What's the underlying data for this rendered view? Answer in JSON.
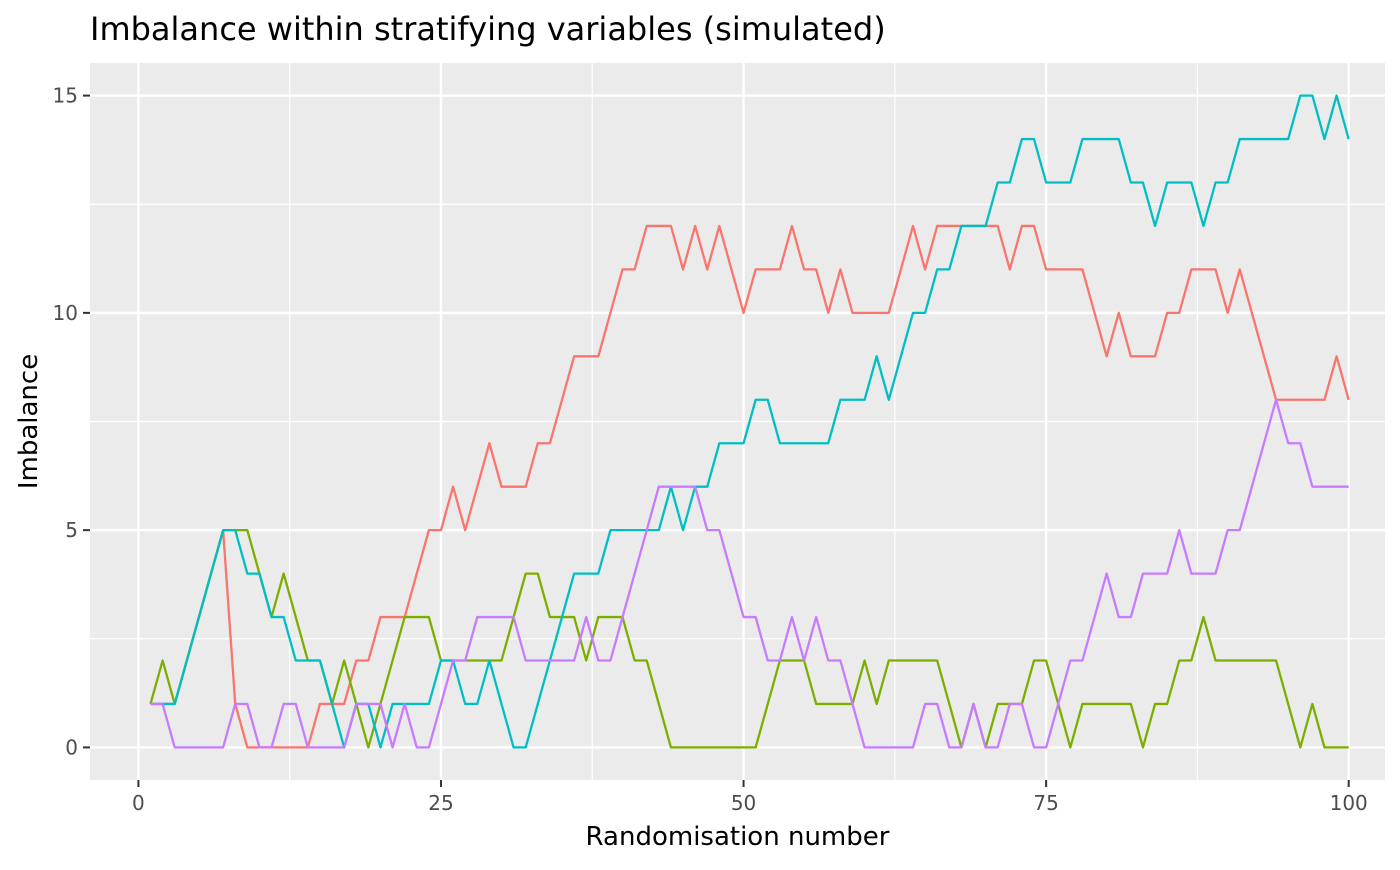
{
  "chart_data": {
    "type": "line",
    "title": "Imbalance within stratifying variables (simulated)",
    "xlabel": "Randomisation number",
    "ylabel": "Imbalance",
    "xlim": [
      -4,
      103
    ],
    "ylim": [
      -0.75,
      15.75
    ],
    "x_ticks": [
      0,
      25,
      50,
      75,
      100
    ],
    "y_ticks": [
      0,
      5,
      10,
      15
    ],
    "x_tick_labels": [
      "0",
      "25",
      "50",
      "75",
      "100"
    ],
    "y_tick_labels": [
      "0",
      "5",
      "10",
      "15"
    ],
    "grid": true,
    "legend": "none",
    "panel_background": "#EBEBEB",
    "x": [
      1,
      2,
      3,
      4,
      5,
      6,
      7,
      8,
      9,
      10,
      11,
      12,
      13,
      14,
      15,
      16,
      17,
      18,
      19,
      20,
      21,
      22,
      23,
      24,
      25,
      26,
      27,
      28,
      29,
      30,
      31,
      32,
      33,
      34,
      35,
      36,
      37,
      38,
      39,
      40,
      41,
      42,
      43,
      44,
      45,
      46,
      47,
      48,
      49,
      50,
      51,
      52,
      53,
      54,
      55,
      56,
      57,
      58,
      59,
      60,
      61,
      62,
      63,
      64,
      65,
      66,
      67,
      68,
      69,
      70,
      71,
      72,
      73,
      74,
      75,
      76,
      77,
      78,
      79,
      80,
      81,
      82,
      83,
      84,
      85,
      86,
      87,
      88,
      89,
      90,
      91,
      92,
      93,
      94,
      95,
      96,
      97,
      98,
      99,
      100
    ],
    "series": [
      {
        "color": "#F8766D",
        "values": [
          1,
          1,
          1,
          2,
          3,
          4,
          5,
          1,
          0,
          0,
          0,
          0,
          0,
          0,
          1,
          1,
          1,
          2,
          2,
          3,
          3,
          3,
          4,
          5,
          5,
          6,
          5,
          6,
          7,
          6,
          6,
          6,
          7,
          7,
          8,
          9,
          9,
          9,
          10,
          11,
          11,
          12,
          12,
          12,
          11,
          12,
          11,
          12,
          11,
          10,
          11,
          11,
          11,
          12,
          11,
          11,
          10,
          11,
          10,
          10,
          10,
          10,
          11,
          12,
          11,
          12,
          12,
          12,
          12,
          12,
          12,
          11,
          12,
          12,
          11,
          11,
          11,
          11,
          10,
          9,
          10,
          9,
          9,
          9,
          10,
          10,
          11,
          11,
          11,
          10,
          11,
          10,
          9,
          8,
          8,
          8,
          8,
          8,
          9,
          8
        ]
      },
      {
        "color": "#7CAE00",
        "values": [
          1,
          2,
          1,
          2,
          3,
          4,
          5,
          5,
          5,
          4,
          3,
          4,
          3,
          2,
          2,
          1,
          2,
          1,
          0,
          1,
          2,
          3,
          3,
          3,
          2,
          2,
          2,
          2,
          2,
          2,
          3,
          4,
          4,
          3,
          3,
          3,
          2,
          3,
          3,
          3,
          2,
          2,
          1,
          0,
          0,
          0,
          0,
          0,
          0,
          0,
          0,
          1,
          2,
          2,
          2,
          1,
          1,
          1,
          1,
          2,
          1,
          2,
          2,
          2,
          2,
          2,
          1,
          0,
          1,
          0,
          1,
          1,
          1,
          2,
          2,
          1,
          0,
          1,
          1,
          1,
          1,
          1,
          0,
          1,
          1,
          2,
          2,
          3,
          2,
          2,
          2,
          2,
          2,
          2,
          1,
          0,
          1,
          0,
          0,
          0
        ]
      },
      {
        "color": "#00BFC4",
        "values": [
          1,
          1,
          1,
          2,
          3,
          4,
          5,
          5,
          4,
          4,
          3,
          3,
          2,
          2,
          2,
          1,
          0,
          1,
          1,
          0,
          1,
          1,
          1,
          1,
          2,
          2,
          1,
          1,
          2,
          1,
          0,
          0,
          1,
          2,
          3,
          4,
          4,
          4,
          5,
          5,
          5,
          5,
          5,
          6,
          5,
          6,
          6,
          7,
          7,
          7,
          8,
          8,
          7,
          7,
          7,
          7,
          7,
          8,
          8,
          8,
          9,
          8,
          9,
          10,
          10,
          11,
          11,
          12,
          12,
          12,
          13,
          13,
          14,
          14,
          13,
          13,
          13,
          14,
          14,
          14,
          14,
          13,
          13,
          12,
          13,
          13,
          13,
          12,
          13,
          13,
          14,
          14,
          14,
          14,
          14,
          15,
          15,
          14,
          15,
          14
        ]
      },
      {
        "color": "#C77CFF",
        "values": [
          1,
          1,
          0,
          0,
          0,
          0,
          0,
          1,
          1,
          0,
          0,
          1,
          1,
          0,
          0,
          0,
          0,
          1,
          1,
          1,
          0,
          1,
          0,
          0,
          1,
          2,
          2,
          3,
          3,
          3,
          3,
          2,
          2,
          2,
          2,
          2,
          3,
          2,
          2,
          3,
          4,
          5,
          6,
          6,
          6,
          6,
          5,
          5,
          4,
          3,
          3,
          2,
          2,
          3,
          2,
          3,
          2,
          2,
          1,
          0,
          0,
          0,
          0,
          0,
          1,
          1,
          0,
          0,
          1,
          0,
          0,
          1,
          1,
          0,
          0,
          1,
          2,
          2,
          3,
          4,
          3,
          3,
          4,
          4,
          4,
          5,
          4,
          4,
          4,
          5,
          5,
          6,
          7,
          8,
          7,
          7,
          6,
          6,
          6,
          6
        ]
      }
    ]
  }
}
